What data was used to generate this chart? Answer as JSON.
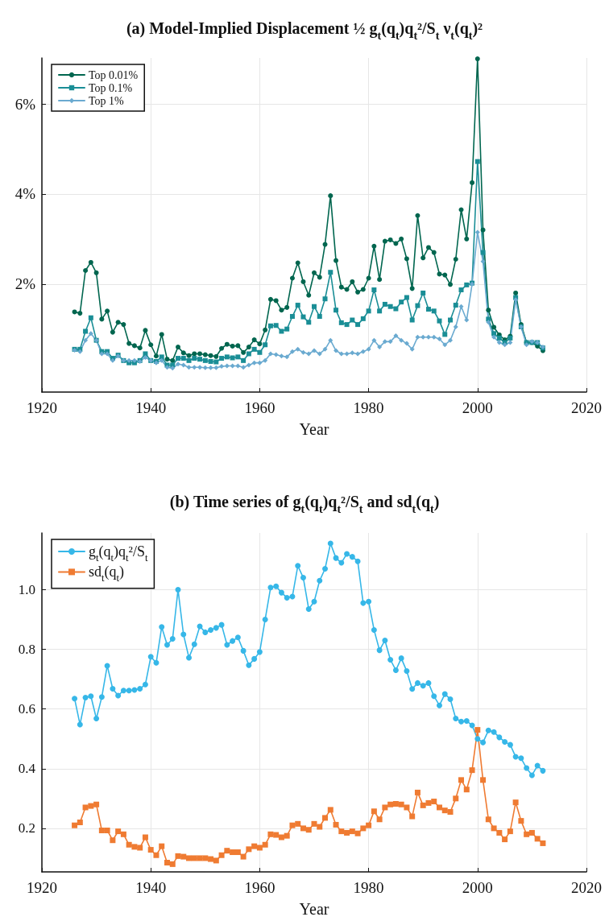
{
  "chart_data": [
    {
      "type": "line",
      "title": "(a) Model-Implied Displacement ½ g$_{t}$(q$_{t}$)q$_{t}$²/S$_{t}$ ν$_{t}$(q$_{t}$)²",
      "xlabel": "Year",
      "x": [
        1926,
        1927,
        1928,
        1929,
        1930,
        1931,
        1932,
        1933,
        1934,
        1935,
        1936,
        1937,
        1938,
        1939,
        1940,
        1941,
        1942,
        1943,
        1944,
        1945,
        1946,
        1947,
        1948,
        1949,
        1950,
        1951,
        1952,
        1953,
        1954,
        1955,
        1956,
        1957,
        1958,
        1959,
        1960,
        1961,
        1962,
        1963,
        1964,
        1965,
        1966,
        1967,
        1968,
        1969,
        1970,
        1971,
        1972,
        1973,
        1974,
        1975,
        1976,
        1977,
        1978,
        1979,
        1980,
        1981,
        1982,
        1983,
        1984,
        1985,
        1986,
        1987,
        1988,
        1989,
        1990,
        1991,
        1992,
        1993,
        1994,
        1995,
        1996,
        1997,
        1998,
        1999,
        2000,
        2001,
        2002,
        2003,
        2004,
        2005,
        2006,
        2007,
        2008,
        2009,
        2010,
        2011,
        2012
      ],
      "series": [
        {
          "name": "Top 0.01%",
          "color": "#00664f",
          "marker": "circle",
          "values": [
            1.38,
            1.35,
            2.3,
            2.48,
            2.25,
            1.22,
            1.4,
            0.93,
            1.15,
            1.1,
            0.68,
            0.63,
            0.58,
            0.97,
            0.65,
            0.4,
            0.88,
            0.33,
            0.3,
            0.6,
            0.47,
            0.41,
            0.45,
            0.45,
            0.43,
            0.41,
            0.39,
            0.57,
            0.66,
            0.62,
            0.63,
            0.48,
            0.6,
            0.76,
            0.67,
            0.98,
            1.66,
            1.63,
            1.42,
            1.48,
            2.13,
            2.47,
            2.05,
            1.75,
            2.25,
            2.15,
            2.88,
            3.96,
            2.52,
            1.93,
            1.88,
            2.05,
            1.82,
            1.88,
            2.13,
            2.84,
            2.1,
            2.95,
            2.98,
            2.9,
            3.0,
            2.56,
            1.9,
            3.52,
            2.58,
            2.81,
            2.7,
            2.22,
            2.2,
            1.99,
            2.55,
            3.65,
            3.0,
            4.25,
            7.0,
            3.2,
            1.42,
            1.04,
            0.87,
            0.76,
            0.84,
            1.8,
            1.1,
            0.7,
            0.7,
            0.62,
            0.52
          ]
        },
        {
          "name": "Top 0.1%",
          "color": "#1a8e96",
          "marker": "square",
          "values": [
            0.55,
            0.55,
            0.95,
            1.25,
            0.75,
            0.5,
            0.5,
            0.35,
            0.42,
            0.3,
            0.25,
            0.25,
            0.3,
            0.45,
            0.3,
            0.28,
            0.38,
            0.2,
            0.2,
            0.35,
            0.35,
            0.3,
            0.35,
            0.33,
            0.3,
            0.28,
            0.27,
            0.35,
            0.38,
            0.36,
            0.38,
            0.3,
            0.45,
            0.55,
            0.48,
            0.65,
            1.07,
            1.08,
            0.95,
            1.0,
            1.28,
            1.53,
            1.27,
            1.15,
            1.5,
            1.28,
            1.67,
            2.26,
            1.42,
            1.14,
            1.1,
            1.2,
            1.1,
            1.23,
            1.4,
            1.87,
            1.4,
            1.55,
            1.5,
            1.45,
            1.6,
            1.7,
            1.2,
            1.52,
            1.8,
            1.44,
            1.4,
            1.18,
            0.88,
            1.2,
            1.53,
            1.87,
            1.98,
            2.02,
            4.72,
            2.7,
            1.22,
            0.9,
            0.8,
            0.7,
            0.8,
            1.7,
            1.05,
            0.7,
            0.7,
            0.7,
            0.58
          ]
        },
        {
          "name": "Top 1%",
          "color": "#6aaad0",
          "marker": "diamond",
          "values": [
            0.53,
            0.5,
            0.75,
            0.9,
            0.75,
            0.45,
            0.45,
            0.3,
            0.4,
            0.3,
            0.3,
            0.3,
            0.28,
            0.37,
            0.3,
            0.25,
            0.3,
            0.15,
            0.13,
            0.22,
            0.2,
            0.15,
            0.15,
            0.15,
            0.14,
            0.14,
            0.14,
            0.17,
            0.18,
            0.18,
            0.18,
            0.15,
            0.2,
            0.25,
            0.25,
            0.3,
            0.45,
            0.43,
            0.4,
            0.38,
            0.5,
            0.55,
            0.48,
            0.45,
            0.52,
            0.45,
            0.55,
            0.75,
            0.52,
            0.45,
            0.45,
            0.47,
            0.45,
            0.5,
            0.55,
            0.75,
            0.6,
            0.72,
            0.72,
            0.85,
            0.75,
            0.68,
            0.55,
            0.82,
            0.82,
            0.82,
            0.82,
            0.78,
            0.65,
            0.75,
            1.05,
            1.5,
            1.2,
            2.0,
            3.15,
            2.5,
            1.15,
            0.82,
            0.7,
            0.65,
            0.7,
            1.65,
            1.05,
            0.65,
            0.72,
            0.7,
            0.6
          ]
        }
      ],
      "xlim": [
        1920,
        2020
      ],
      "xticks": [
        1920,
        1940,
        1960,
        1980,
        2000,
        2020
      ],
      "ylim": [
        -0.4,
        7.02
      ],
      "yticks": [
        {
          "value": 2,
          "label": "2%"
        },
        {
          "value": 4,
          "label": "4%"
        },
        {
          "value": 6,
          "label": "6%"
        }
      ],
      "grid": true,
      "legend": "top left",
      "line_style": "solid"
    },
    {
      "type": "line",
      "title": "(b) Time series of g$_{t}$(q$_{t}$)q$_{t}$²/S$_{t}$ and sd$_{t}$(q$_{t}$)",
      "xlabel": "Year",
      "x": [
        1926,
        1927,
        1928,
        1929,
        1930,
        1931,
        1932,
        1933,
        1934,
        1935,
        1936,
        1937,
        1938,
        1939,
        1940,
        1941,
        1942,
        1943,
        1944,
        1945,
        1946,
        1947,
        1948,
        1949,
        1950,
        1951,
        1952,
        1953,
        1954,
        1955,
        1956,
        1957,
        1958,
        1959,
        1960,
        1961,
        1962,
        1963,
        1964,
        1965,
        1966,
        1967,
        1968,
        1969,
        1970,
        1971,
        1972,
        1973,
        1974,
        1975,
        1976,
        1977,
        1978,
        1979,
        1980,
        1981,
        1982,
        1983,
        1984,
        1985,
        1986,
        1987,
        1988,
        1989,
        1990,
        1991,
        1992,
        1993,
        1994,
        1995,
        1996,
        1997,
        1998,
        1999,
        2000,
        2001,
        2002,
        2003,
        2004,
        2005,
        2006,
        2007,
        2008,
        2009,
        2010,
        2011,
        2012
      ],
      "series": [
        {
          "name": "g$_{t}$(q$_{t}$)q$_{t}$²/S$_{t}$",
          "color": "#36b7e8",
          "marker": "circle",
          "values": [
            0.635,
            0.548,
            0.638,
            0.643,
            0.568,
            0.64,
            0.745,
            0.668,
            0.645,
            0.662,
            0.662,
            0.664,
            0.668,
            0.682,
            0.775,
            0.755,
            0.875,
            0.815,
            0.835,
            1.0,
            0.85,
            0.772,
            0.817,
            0.877,
            0.857,
            0.865,
            0.872,
            0.882,
            0.815,
            0.828,
            0.84,
            0.795,
            0.747,
            0.768,
            0.791,
            0.9,
            1.007,
            1.011,
            0.99,
            0.973,
            0.977,
            1.08,
            1.04,
            0.935,
            0.96,
            1.03,
            1.07,
            1.155,
            1.106,
            1.09,
            1.12,
            1.11,
            1.095,
            0.955,
            0.96,
            0.865,
            0.797,
            0.83,
            0.765,
            0.73,
            0.77,
            0.727,
            0.667,
            0.687,
            0.678,
            0.687,
            0.643,
            0.612,
            0.65,
            0.633,
            0.568,
            0.558,
            0.56,
            0.545,
            0.5,
            0.488,
            0.528,
            0.523,
            0.505,
            0.49,
            0.48,
            0.44,
            0.435,
            0.402,
            0.378,
            0.41,
            0.393
          ]
        },
        {
          "name": "sd$_{t}$(q$_{t}$)",
          "color": "#ef7b32",
          "marker": "square",
          "values": [
            0.21,
            0.22,
            0.27,
            0.275,
            0.28,
            0.193,
            0.193,
            0.16,
            0.19,
            0.18,
            0.145,
            0.138,
            0.135,
            0.17,
            0.128,
            0.11,
            0.14,
            0.085,
            0.08,
            0.107,
            0.105,
            0.1,
            0.1,
            0.1,
            0.1,
            0.097,
            0.092,
            0.11,
            0.125,
            0.12,
            0.12,
            0.105,
            0.13,
            0.14,
            0.135,
            0.145,
            0.18,
            0.178,
            0.17,
            0.175,
            0.21,
            0.215,
            0.2,
            0.195,
            0.215,
            0.205,
            0.235,
            0.262,
            0.212,
            0.19,
            0.185,
            0.19,
            0.183,
            0.2,
            0.21,
            0.257,
            0.23,
            0.27,
            0.28,
            0.282,
            0.28,
            0.27,
            0.24,
            0.32,
            0.277,
            0.285,
            0.29,
            0.27,
            0.26,
            0.255,
            0.3,
            0.362,
            0.33,
            0.395,
            0.53,
            0.362,
            0.23,
            0.2,
            0.185,
            0.163,
            0.19,
            0.287,
            0.225,
            0.18,
            0.185,
            0.165,
            0.15
          ]
        }
      ],
      "xlim": [
        1920,
        2020
      ],
      "xticks": [
        1920,
        1940,
        1960,
        1980,
        2000,
        2020
      ],
      "ylim": [
        0.054,
        1.19
      ],
      "yticks": [
        0.2,
        0.4,
        0.6,
        0.8,
        {
          "value": 1,
          "label": "1.0"
        }
      ],
      "grid": true,
      "legend": "top left",
      "line_style": "solid"
    }
  ]
}
